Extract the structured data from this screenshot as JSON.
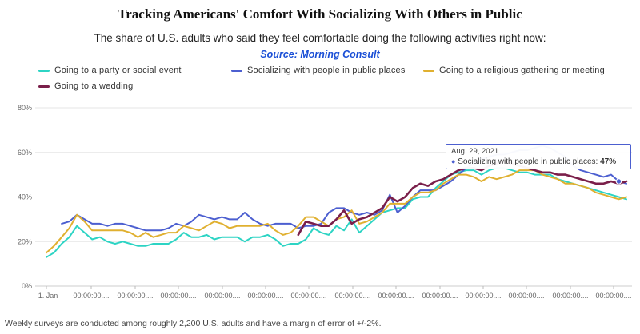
{
  "chart_data": {
    "type": "line",
    "title": "Tracking Americans' Comfort With Socializing With Others in Public",
    "subtitle": "The share of U.S. adults who said they feel comfortable doing the following activities right now:",
    "source": "Source: Morning Consult",
    "footnote": "Weekly surveys are conducted among roughly 2,200 U.S. adults and have a margin of error of +/-2%.",
    "ylim": [
      0,
      80
    ],
    "y_ticks": [
      "0%",
      "20%",
      "40%",
      "60%",
      "80%"
    ],
    "x_ticks": [
      "1. Jan",
      "00:00:00....",
      "00:00:00....",
      "00:00:00....",
      "00:00:00....",
      "00:00:00....",
      "00:00:00....",
      "00:00:00....",
      "00:00:00....",
      "00:00:00....",
      "00:00:00....",
      "00:00:00....",
      "00:00:00....",
      "00:00:00...."
    ],
    "grid": true,
    "legend_position": "top",
    "series": [
      {
        "name": "Going to a party or social event",
        "color": "#2dd4c4",
        "values": [
          13,
          15,
          19,
          22,
          27,
          24,
          21,
          22,
          20,
          19,
          20,
          19,
          18,
          18,
          19,
          19,
          19,
          21,
          24,
          22,
          22,
          23,
          21,
          22,
          22,
          22,
          20,
          22,
          22,
          23,
          21,
          18,
          19,
          19,
          21,
          26,
          24,
          23,
          27,
          25,
          30,
          24,
          27,
          30,
          33,
          34,
          35,
          35,
          39,
          40,
          40,
          44,
          47,
          50,
          51,
          52,
          52,
          50,
          52,
          53,
          53,
          52,
          51,
          51,
          50,
          50,
          50,
          48,
          47,
          46,
          45,
          44,
          43,
          42,
          41,
          40,
          39
        ]
      },
      {
        "name": "Socializing with people in public places",
        "color": "#4c5fd0",
        "values": [
          null,
          null,
          28,
          29,
          32,
          30,
          28,
          28,
          27,
          28,
          28,
          27,
          26,
          25,
          25,
          25,
          26,
          28,
          27,
          29,
          32,
          31,
          30,
          31,
          30,
          30,
          33,
          30,
          28,
          27,
          28,
          28,
          28,
          26,
          27,
          27,
          28,
          33,
          35,
          35,
          33,
          32,
          33,
          32,
          34,
          41,
          33,
          36,
          40,
          43,
          43,
          43,
          45,
          47,
          50,
          53,
          55,
          57,
          58,
          59,
          59,
          60,
          61,
          61,
          62,
          63,
          62,
          60,
          58,
          54,
          52,
          51,
          50,
          49,
          50,
          47,
          46
        ]
      },
      {
        "name": "Going to a religious gathering or meeting",
        "color": "#e0b030",
        "values": [
          15,
          18,
          22,
          26,
          32,
          29,
          25,
          25,
          25,
          25,
          25,
          24,
          22,
          24,
          22,
          23,
          24,
          24,
          27,
          26,
          25,
          27,
          29,
          28,
          26,
          27,
          27,
          27,
          27,
          28,
          25,
          23,
          24,
          27,
          31,
          31,
          29,
          27,
          30,
          31,
          34,
          28,
          29,
          31,
          33,
          37,
          37,
          37,
          40,
          42,
          42,
          43,
          46,
          48,
          50,
          50,
          49,
          47,
          49,
          48,
          49,
          50,
          52,
          52,
          52,
          50,
          49,
          48,
          46,
          46,
          45,
          44,
          42,
          41,
          40,
          39,
          40
        ]
      },
      {
        "name": "Going to a wedding",
        "color": "#7a1f4a",
        "values": [
          null,
          null,
          null,
          null,
          null,
          null,
          null,
          null,
          null,
          null,
          null,
          null,
          null,
          null,
          null,
          null,
          null,
          null,
          null,
          null,
          null,
          null,
          null,
          null,
          null,
          null,
          null,
          null,
          null,
          null,
          null,
          null,
          null,
          23,
          29,
          28,
          27,
          27,
          30,
          34,
          28,
          30,
          31,
          33,
          35,
          40,
          38,
          40,
          44,
          46,
          45,
          47,
          48,
          50,
          52,
          53,
          53,
          52,
          54,
          55,
          56,
          55,
          54,
          53,
          52,
          51,
          51,
          50,
          50,
          49,
          48,
          47,
          46,
          46,
          47,
          46,
          47
        ]
      }
    ]
  },
  "tooltip": {
    "date": "Aug. 29, 2021",
    "label": "Socializing with people in public places: ",
    "value": "47%",
    "dot": "●"
  }
}
